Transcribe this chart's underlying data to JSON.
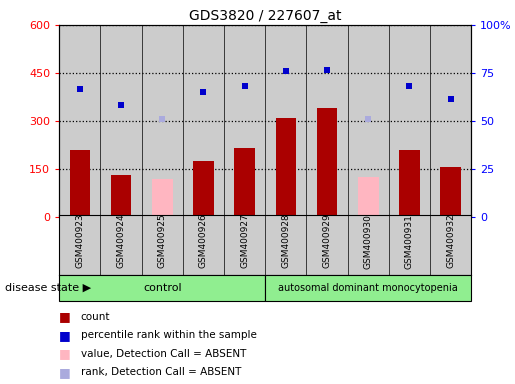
{
  "title": "GDS3820 / 227607_at",
  "samples": [
    "GSM400923",
    "GSM400924",
    "GSM400925",
    "GSM400926",
    "GSM400927",
    "GSM400928",
    "GSM400929",
    "GSM400930",
    "GSM400931",
    "GSM400932"
  ],
  "count_values": [
    210,
    130,
    null,
    175,
    215,
    310,
    340,
    null,
    210,
    155
  ],
  "absent_bar_values": [
    null,
    null,
    120,
    null,
    null,
    null,
    null,
    125,
    null,
    null
  ],
  "percentile_left_scale": [
    400,
    350,
    null,
    390,
    410,
    455,
    460,
    null,
    410,
    370
  ],
  "absent_rank_left_scale": [
    null,
    null,
    305,
    null,
    null,
    null,
    null,
    305,
    null,
    null
  ],
  "n_control": 5,
  "n_disease": 5,
  "control_label": "control",
  "disease_label": "autosomal dominant monocytopenia",
  "bar_color": "#aa0000",
  "absent_bar_color": "#ffb6c1",
  "dot_color": "#0000cc",
  "absent_dot_color": "#aaaadd",
  "bg_color": "#cccccc",
  "control_bg": "#90ee90",
  "disease_bg": "#90ee90",
  "bar_width": 0.5,
  "left_ylim": [
    0,
    600
  ],
  "right_ylim": [
    0,
    100
  ],
  "left_yticks": [
    0,
    150,
    300,
    450,
    600
  ],
  "right_yticks": [
    0,
    25,
    50,
    75,
    100
  ],
  "right_yticklabels": [
    "0",
    "25",
    "50",
    "75",
    "100%"
  ],
  "legend_items": [
    {
      "color": "#aa0000",
      "label": "count"
    },
    {
      "color": "#0000cc",
      "label": "percentile rank within the sample"
    },
    {
      "color": "#ffb6c1",
      "label": "value, Detection Call = ABSENT"
    },
    {
      "color": "#aaaadd",
      "label": "rank, Detection Call = ABSENT"
    }
  ]
}
